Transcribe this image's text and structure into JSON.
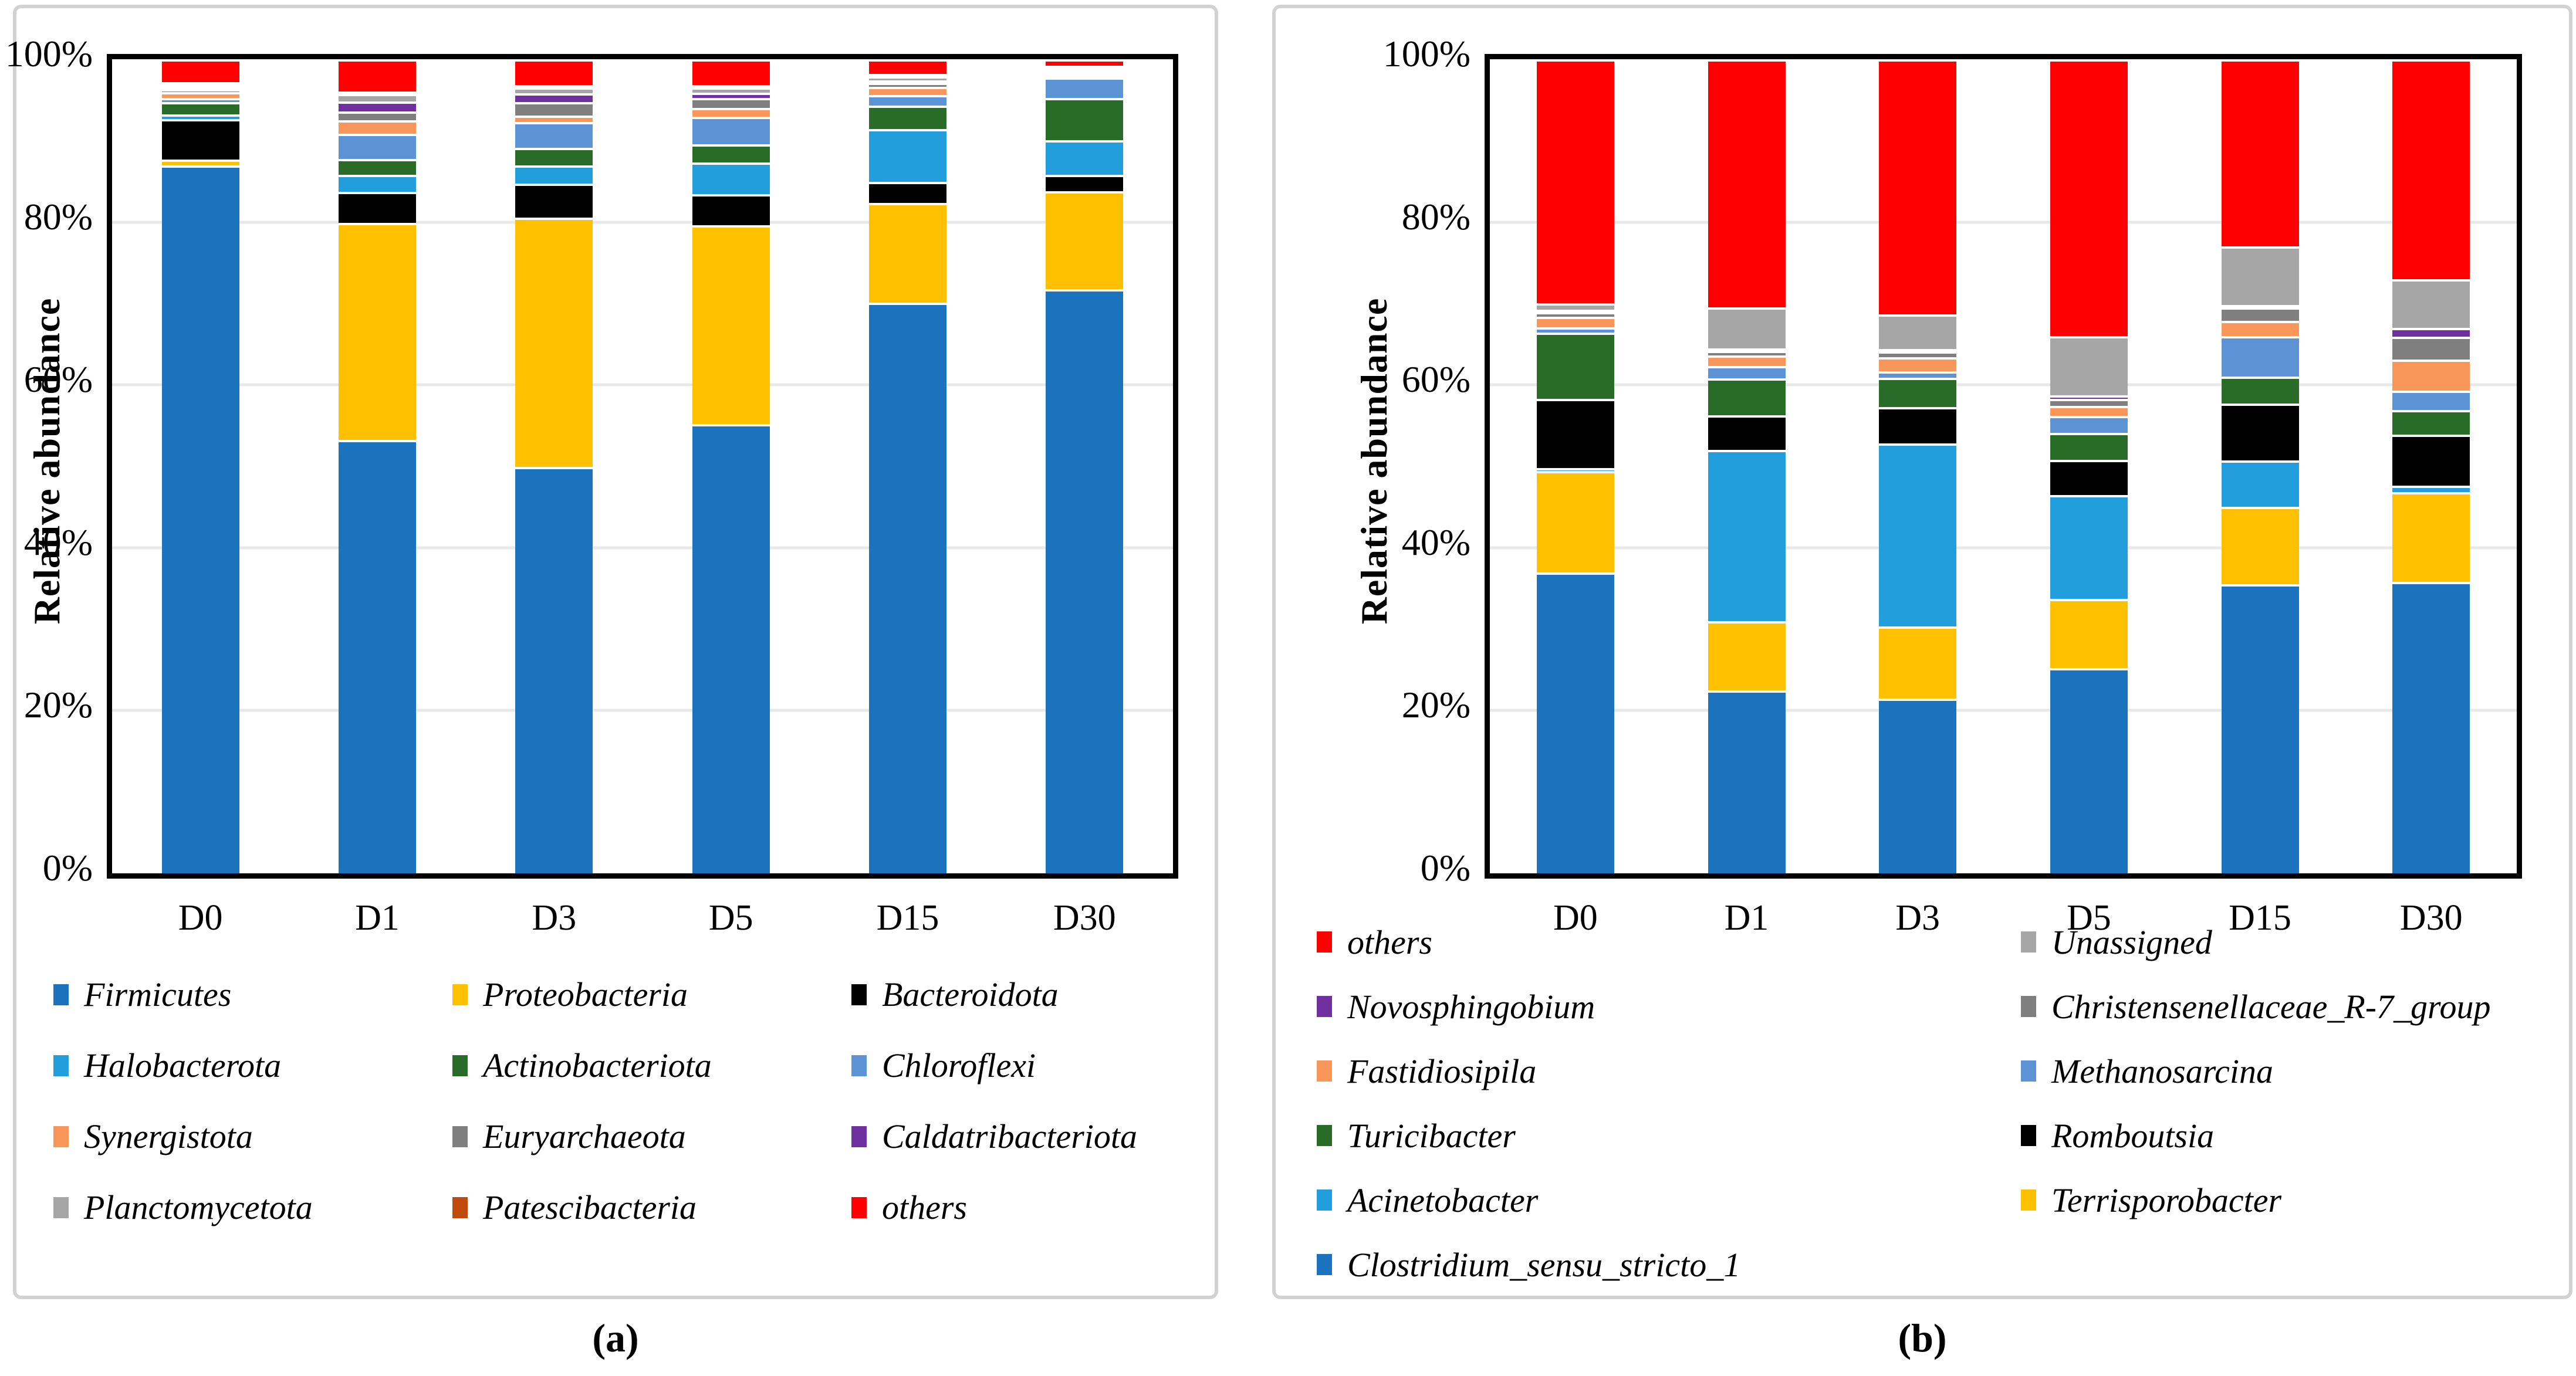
{
  "figure": {
    "y_axis_title": "Relative abundance",
    "y_ticks": [
      "0%",
      "20%",
      "40%",
      "60%",
      "80%",
      "100%"
    ],
    "captions": {
      "a": "(a)",
      "b": "(b)"
    }
  },
  "chart_data": [
    {
      "id": "a",
      "type": "bar",
      "stacked": true,
      "title": "",
      "xlabel": "",
      "ylabel": "Relative abundance",
      "ylim": [
        0,
        100
      ],
      "grid": "horizontal at 20/40/60/80%",
      "legend_position": "bottom",
      "legend_columns": 3,
      "categories": [
        "D0",
        "D1",
        "D3",
        "D5",
        "D15",
        "D30"
      ],
      "series": [
        {
          "name": "Firmicutes",
          "color": "#1b73be",
          "values": [
            87.4,
            53.3,
            50.0,
            55.2,
            70.2,
            72.0
          ]
        },
        {
          "name": "Proteobacteria",
          "color": "#ffc000",
          "values": [
            0.7,
            26.7,
            30.6,
            24.5,
            12.3,
            12.1
          ]
        },
        {
          "name": "Bacteroidota",
          "color": "#000000",
          "values": [
            5.0,
            3.8,
            4.2,
            3.8,
            2.6,
            2.0
          ]
        },
        {
          "name": "Halobacterota",
          "color": "#219edb",
          "values": [
            0.6,
            2.1,
            2.2,
            3.9,
            6.5,
            4.3
          ]
        },
        {
          "name": "Actinobacteriota",
          "color": "#286c28",
          "values": [
            1.5,
            1.9,
            2.2,
            2.2,
            2.9,
            5.2
          ]
        },
        {
          "name": "Chloroflexi",
          "color": "#5b93d4",
          "values": [
            0.5,
            3.1,
            3.2,
            3.4,
            1.3,
            2.5
          ]
        },
        {
          "name": "Synergistota",
          "color": "#f9965a",
          "values": [
            0.7,
            1.7,
            0.8,
            1.1,
            1.0,
            0.2
          ]
        },
        {
          "name": "Euryarchaeota",
          "color": "#7f7f7f",
          "values": [
            0.4,
            1.1,
            1.6,
            1.2,
            0.5,
            0.3
          ]
        },
        {
          "name": "Caldatribacteriota",
          "color": "#7030a0",
          "values": [
            0.1,
            1.2,
            1.1,
            0.7,
            0.3,
            0.2
          ]
        },
        {
          "name": "Planctomycetota",
          "color": "#a6a6a6",
          "values": [
            0.2,
            0.9,
            0.7,
            0.6,
            0.5,
            0.3
          ]
        },
        {
          "name": "Patescibacteria",
          "color": "#bf4a0b",
          "values": [
            0.1,
            0.2,
            0.2,
            0.2,
            0.1,
            0.1
          ]
        },
        {
          "name": "others",
          "color": "#ff0000",
          "values": [
            2.8,
            4.0,
            3.2,
            3.2,
            1.8,
            0.8
          ]
        }
      ],
      "legend_order": [
        "Firmicutes",
        "Proteobacteria",
        "Bacteroidota",
        "Halobacterota",
        "Actinobacteriota",
        "Chloroflexi",
        "Synergistota",
        "Euryarchaeota",
        "Caldatribacteriota",
        "Planctomycetota",
        "Patescibacteria",
        "others"
      ]
    },
    {
      "id": "b",
      "type": "bar",
      "stacked": true,
      "title": "",
      "xlabel": "",
      "ylabel": "Relative abundance",
      "ylim": [
        0,
        100
      ],
      "grid": "horizontal at 20/40/60/80%",
      "legend_position": "bottom",
      "legend_columns": 2,
      "categories": [
        "D0",
        "D1",
        "D3",
        "D5",
        "D15",
        "D30"
      ],
      "series": [
        {
          "name": "Clostridium_sensu_stricto_1",
          "color": "#1b73be",
          "values": [
            37.0,
            22.5,
            21.5,
            25.2,
            35.5,
            35.8
          ]
        },
        {
          "name": "Terrisporobacter",
          "color": "#ffc000",
          "values": [
            12.5,
            8.5,
            8.8,
            8.5,
            9.5,
            11.0
          ]
        },
        {
          "name": "Acinetobacter",
          "color": "#219edb",
          "values": [
            0.3,
            21.0,
            22.5,
            12.8,
            5.7,
            0.8
          ]
        },
        {
          "name": "Romboutsia",
          "color": "#000000",
          "values": [
            8.5,
            4.3,
            4.5,
            4.3,
            7.0,
            6.3
          ]
        },
        {
          "name": "Turicibacter",
          "color": "#286c28",
          "values": [
            8.2,
            4.5,
            3.6,
            3.3,
            3.3,
            3.0
          ]
        },
        {
          "name": "Methanosarcina",
          "color": "#5b93d4",
          "values": [
            0.6,
            1.5,
            0.8,
            2.1,
            5.0,
            2.4
          ]
        },
        {
          "name": "Fastidiosipila",
          "color": "#f9965a",
          "values": [
            1.3,
            1.3,
            1.7,
            1.2,
            1.9,
            3.8
          ]
        },
        {
          "name": "Christensenellaceae_R-7_group",
          "color": "#7f7f7f",
          "values": [
            0.6,
            0.6,
            0.7,
            0.9,
            1.6,
            2.8
          ]
        },
        {
          "name": "Novosphingobium",
          "color": "#7030a0",
          "values": [
            0.2,
            0.3,
            0.3,
            0.4,
            0.3,
            1.1
          ]
        },
        {
          "name": "Unassigned",
          "color": "#a6a6a6",
          "values": [
            0.8,
            5.0,
            4.3,
            7.3,
            7.2,
            6.0
          ]
        },
        {
          "name": "others",
          "color": "#ff0000",
          "values": [
            30.0,
            30.5,
            31.3,
            34.0,
            23.0,
            27.0
          ]
        }
      ],
      "legend_order": [
        "others",
        "Unassigned",
        "Novosphingobium",
        "Christensenellaceae_R-7_group",
        "Fastidiosipila",
        "Methanosarcina",
        "Turicibacter",
        "Romboutsia",
        "Acinetobacter",
        "Terrisporobacter",
        "Clostridium_sensu_stricto_1"
      ]
    }
  ]
}
